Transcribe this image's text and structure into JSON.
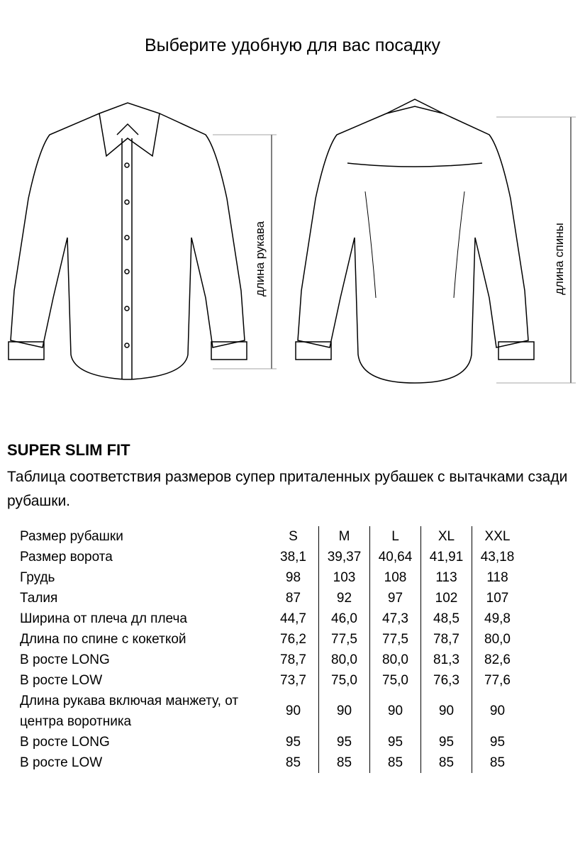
{
  "title": "Выберите удобную для вас посадку",
  "diagram": {
    "sleeve_label": "длина рукава",
    "back_label": "длина спины"
  },
  "fit_name": "SUPER SLIM FIT",
  "description": "Таблица соответствия размеров супер приталенных рубашек с вытачками сзади рубашки.",
  "table": {
    "header": {
      "label": "Размер рубашки",
      "sizes": [
        "S",
        "M",
        "L",
        "XL",
        "XXL"
      ]
    },
    "rows": [
      {
        "label": "Размер ворота",
        "values": [
          "38,1",
          "39,37",
          "40,64",
          "41,91",
          "43,18"
        ]
      },
      {
        "label": "Грудь",
        "values": [
          "98",
          "103",
          "108",
          "113",
          "118"
        ]
      },
      {
        "label": "Талия",
        "values": [
          "87",
          "92",
          "97",
          "102",
          "107"
        ]
      },
      {
        "label": "Ширина от плеча дл плеча",
        "values": [
          "44,7",
          "46,0",
          "47,3",
          "48,5",
          "49,8"
        ]
      },
      {
        "label": "Длина по спине с кокеткой",
        "values": [
          "76,2",
          "77,5",
          "77,5",
          "78,7",
          "80,0"
        ]
      },
      {
        "label": "В росте LONG",
        "values": [
          "78,7",
          "80,0",
          "80,0",
          "81,3",
          "82,6"
        ]
      },
      {
        "label": "В росте LOW",
        "values": [
          "73,7",
          "75,0",
          "75,0",
          "76,3",
          "77,6"
        ]
      },
      {
        "label": "Длина рукава включая манжету, от центра воротника",
        "values": [
          "90",
          "90",
          "90",
          "90",
          "90"
        ]
      },
      {
        "label": "В росте LONG",
        "values": [
          "95",
          "95",
          "95",
          "95",
          "95"
        ]
      },
      {
        "label": "В росте LOW",
        "values": [
          "85",
          "85",
          "85",
          "85",
          "85"
        ]
      }
    ]
  }
}
